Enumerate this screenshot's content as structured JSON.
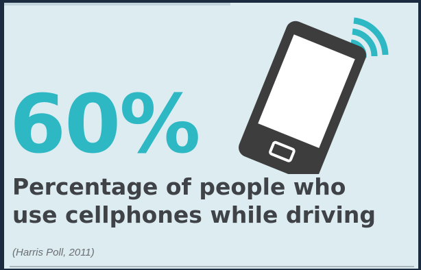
{
  "stat": {
    "value": "60%",
    "description_line1": "Percentage of people who",
    "description_line2": "use cellphones while driving",
    "source": "(Harris Poll, 2011)"
  },
  "icons": {
    "phone": "cellphone-with-signal-icon"
  },
  "colors": {
    "background": "#dcecf1",
    "accent": "#2db8c3",
    "text": "#3f4347",
    "frame": "#1b2c40",
    "phone": "#3d3d3d"
  }
}
